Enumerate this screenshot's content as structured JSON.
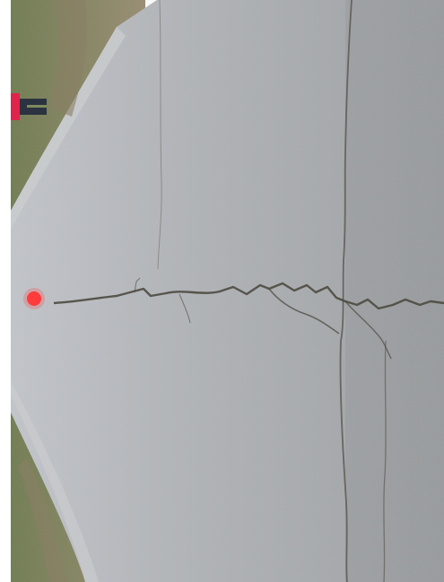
{
  "photo": {
    "subject": "aerial-road-crack",
    "colors": {
      "border": "#ffffff",
      "grass": "#7f8a5c",
      "grass_dark": "#5f6a44",
      "dirt": "#9a8d70",
      "asphalt_light": "#b9bdc3",
      "asphalt": "#a7aaad",
      "asphalt_dark": "#8f9295",
      "crack": "#4d4a40",
      "marker": "#ff3b3b",
      "person_shirt": "#e0234a",
      "person_pants": "#2b3340"
    }
  }
}
